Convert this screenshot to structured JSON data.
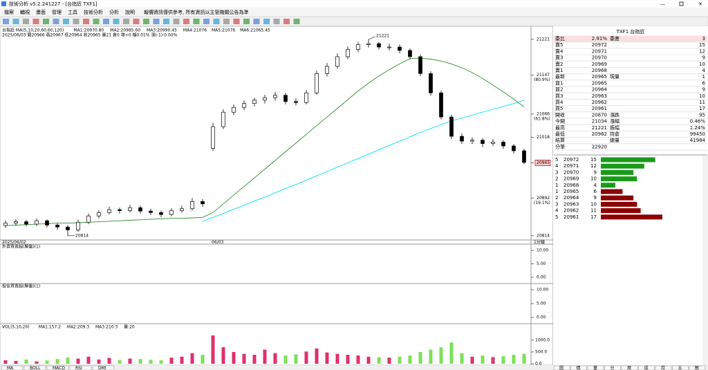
{
  "title_bar": "技術分析 v5.2.241227 - [台指近 TXF1]",
  "menu": [
    "檔案",
    "輔視",
    "畫面",
    "管理",
    "工具",
    "技術分析",
    "分析",
    "說明"
  ],
  "notice": "報價資訊僅供參考, 所有資訊以主管機關公告為準",
  "chart_data": [
    {
      "type": "candlestick",
      "legend": [
        {
          "text": "台指近 MA(5,10,20,60,60,120)",
          "color": "#000000"
        },
        {
          "text": "MA1:20970.80",
          "color": "#3050c0"
        },
        {
          "text": "MA2:20985.60",
          "color": "#e040c0"
        },
        {
          "text": "MA3:20990.45",
          "color": "#909090"
        },
        {
          "text": "MA4:21076",
          "color": "#a00000"
        },
        {
          "text": "MA5:21076",
          "color": "#208020"
        },
        {
          "text": "MA6:21065.45",
          "color": "#00c8d8"
        }
      ],
      "info": "2025/06/03 開20966 高20967 低20964 收20965 量21 倉0 增+0 幅0.01% 漲(-1)-0.00%",
      "up_color": "#ffffff",
      "down_color": "#000000",
      "candles": [
        [
          20835,
          20846,
          20830,
          20840
        ],
        [
          20840,
          20848,
          20835,
          20843
        ],
        [
          20843,
          20847,
          20833,
          20838
        ],
        [
          20838,
          20850,
          20834,
          20845
        ],
        [
          20845,
          20848,
          20831,
          20836
        ],
        [
          20836,
          20840,
          20826,
          20832
        ],
        [
          20832,
          20836,
          20814,
          20826
        ],
        [
          20826,
          20847,
          20822,
          20842
        ],
        [
          20842,
          20860,
          20838,
          20855
        ],
        [
          20855,
          20867,
          20850,
          20862
        ],
        [
          20862,
          20874,
          20858,
          20868
        ],
        [
          20868,
          20872,
          20860,
          20866
        ],
        [
          20866,
          20878,
          20862,
          20872
        ],
        [
          20872,
          20876,
          20860,
          20865
        ],
        [
          20865,
          20870,
          20857,
          20862
        ],
        [
          20862,
          20866,
          20852,
          20858
        ],
        [
          20858,
          20871,
          20854,
          20866
        ],
        [
          20866,
          20876,
          20862,
          20870
        ],
        [
          20870,
          20892,
          20866,
          20885
        ],
        [
          20885,
          20890,
          20874,
          20880
        ],
        [
          20995,
          21048,
          20990,
          21040
        ],
        [
          21040,
          21076,
          21035,
          21070
        ],
        [
          21070,
          21086,
          21064,
          21080
        ],
        [
          21080,
          21094,
          21074,
          21088
        ],
        [
          21088,
          21100,
          21082,
          21095
        ],
        [
          21095,
          21106,
          21088,
          21100
        ],
        [
          21100,
          21112,
          21094,
          21105
        ],
        [
          21105,
          21110,
          21086,
          21092
        ],
        [
          21092,
          21098,
          21084,
          21090
        ],
        [
          21090,
          21116,
          21086,
          21110
        ],
        [
          21110,
          21156,
          21106,
          21150
        ],
        [
          21150,
          21172,
          21144,
          21165
        ],
        [
          21165,
          21192,
          21160,
          21185
        ],
        [
          21185,
          21206,
          21180,
          21200
        ],
        [
          21200,
          21216,
          21194,
          21210
        ],
        [
          21210,
          21221,
          21204,
          21212
        ],
        [
          21212,
          21216,
          21200,
          21205
        ],
        [
          21205,
          21212,
          21198,
          21205
        ],
        [
          21205,
          21210,
          21192,
          21198
        ],
        [
          21198,
          21202,
          21180,
          21185
        ],
        [
          21185,
          21190,
          21145,
          21150
        ],
        [
          21150,
          21155,
          21104,
          21110
        ],
        [
          21110,
          21115,
          21055,
          21060
        ],
        [
          21060,
          21065,
          21014,
          21020
        ],
        [
          21020,
          21026,
          21004,
          21010
        ],
        [
          21010,
          21018,
          21004,
          21012
        ],
        [
          21012,
          21016,
          20998,
          21005
        ],
        [
          21005,
          21014,
          21000,
          21008
        ],
        [
          21008,
          21012,
          20994,
          21000
        ],
        [
          21000,
          21004,
          20984,
          20990
        ],
        [
          20990,
          20994,
          20962,
          20966
        ]
      ],
      "lines": [
        {
          "color": "#2e8b2e",
          "values": [
            20835,
            20836,
            20837,
            20838,
            20839,
            20840,
            20840,
            20841,
            20842,
            20843,
            20844,
            20845,
            20846,
            20847,
            20848,
            20849,
            20850,
            20850,
            20851,
            20852,
            20862,
            20880,
            20898,
            20916,
            20934,
            20952,
            20970,
            20988,
            21006,
            21024,
            21042,
            21060,
            21078,
            21096,
            21114,
            21130,
            21145,
            21158,
            21170,
            21181,
            21182,
            21180,
            21176,
            21170,
            21162,
            21152,
            21140,
            21126,
            21112,
            21097,
            21081
          ]
        },
        {
          "color": "#00e5ee",
          "values": [
            null,
            null,
            null,
            null,
            null,
            null,
            null,
            null,
            null,
            null,
            null,
            null,
            null,
            null,
            null,
            null,
            null,
            null,
            null,
            20844,
            20852,
            20860,
            20869,
            20877,
            20886,
            20894,
            20903,
            20912,
            20920,
            20929,
            20938,
            20947,
            20956,
            20965,
            20974,
            20983,
            20992,
            21001,
            21010,
            21019,
            21028,
            21036,
            21044,
            21052,
            21058,
            21064,
            21070,
            21076,
            21082,
            21088,
            21095
          ]
        }
      ],
      "ylim": [
        20808,
        21238
      ],
      "yticks": [
        21221,
        21147,
        21066,
        21018,
        20965,
        20892,
        20814
      ],
      "fib_labels": [
        {
          "value": 21147,
          "label": "(80.9%)"
        },
        {
          "value": 21066,
          "label": "(61.8%)"
        },
        {
          "value": 20892,
          "label": "(19.1%)"
        }
      ],
      "high_mark": {
        "index": 35,
        "value": 21221
      },
      "low_mark": {
        "index": 6,
        "value": 20814
      },
      "x_labels": [
        "2025/06/02",
        "06/03"
      ],
      "period": "1分鐘"
    },
    {
      "type": "panel",
      "title": "外資買賣超(解盤)(1)",
      "ylim": [
        0,
        10
      ],
      "yticks": [
        {
          "value": 10,
          "label": "10.00"
        },
        {
          "value": 5,
          "label": "5.00"
        },
        {
          "value": 0,
          "label": "0.00"
        }
      ]
    },
    {
      "type": "panel",
      "title": "投信買賣超(解盤)(1)",
      "ylim": [
        0,
        10
      ],
      "yticks": [
        {
          "value": 10,
          "label": "10.00"
        },
        {
          "value": 5,
          "label": "5.00"
        },
        {
          "value": 0,
          "label": "0.00"
        }
      ]
    },
    {
      "type": "bar",
      "legend": [
        {
          "text": "VOL(5,10,20)",
          "color": "#000000"
        },
        {
          "text": "MA1:157.2",
          "color": "#909090"
        },
        {
          "text": "MA2:209.3",
          "color": "#00c8d8"
        },
        {
          "text": "MA3:210.3",
          "color": "#e06080"
        },
        {
          "text": "量:20",
          "color": "#3050c0"
        }
      ],
      "values": [
        150,
        120,
        180,
        100,
        140,
        200,
        260,
        220,
        300,
        180,
        250,
        160,
        220,
        200,
        170,
        150,
        260,
        300,
        450,
        380,
        1200,
        700,
        500,
        420,
        380,
        600,
        450,
        350,
        400,
        520,
        650,
        480,
        420,
        380,
        350,
        300,
        280,
        260,
        300,
        350,
        500,
        600,
        700,
        900,
        450,
        300,
        350,
        280,
        320,
        380,
        420
      ],
      "up_color": "#e0306a",
      "down_color": "#7ee05a",
      "ylim": [
        0,
        1700
      ],
      "yticks": [
        {
          "value": 1000,
          "label": "1000.0"
        },
        {
          "value": 500,
          "label": "500.0"
        },
        {
          "value": 0,
          "label": "0.0"
        }
      ]
    }
  ],
  "quote": {
    "header": "TXF1 台指近",
    "rows": [
      [
        "委比",
        "2.91%",
        "委差",
        "3"
      ],
      [
        "賣5",
        "20972",
        "",
        "15"
      ],
      [
        "賣4",
        "20971",
        "",
        "12"
      ],
      [
        "賣3",
        "20970",
        "",
        "9"
      ],
      [
        "賣2",
        "20969",
        "",
        "10"
      ],
      [
        "賣1",
        "20968",
        "",
        "4"
      ],
      [
        "最新",
        "20965",
        "現量",
        "1"
      ],
      [
        "買1",
        "20965",
        "",
        "6"
      ],
      [
        "買2",
        "20964",
        "",
        "9"
      ],
      [
        "買3",
        "20963",
        "",
        "10"
      ],
      [
        "買4",
        "20962",
        "",
        "11"
      ],
      [
        "買5",
        "20961",
        "",
        "17"
      ],
      [
        "開收",
        "20870",
        "漲跌",
        "95"
      ],
      [
        "今開",
        "21034",
        "漲幅",
        "0.46%"
      ],
      [
        "最高",
        "21221",
        "振幅",
        "1.24%"
      ],
      [
        "最低",
        "20962",
        "持倉",
        "99450"
      ],
      [
        "結算",
        "",
        "總量",
        "41984"
      ],
      [
        "分筆",
        "22920",
        "",
        ""
      ]
    ]
  },
  "order_book": {
    "sell_color": "#1a9a1a",
    "buy_color": "#8b0000",
    "rows": [
      {
        "level": 5,
        "price": 20972,
        "qty": 15,
        "side": "sell"
      },
      {
        "level": 4,
        "price": 20971,
        "qty": 12,
        "side": "sell"
      },
      {
        "level": 3,
        "price": 20970,
        "qty": 9,
        "side": "sell"
      },
      {
        "level": 2,
        "price": 20969,
        "qty": 10,
        "side": "sell"
      },
      {
        "level": 1,
        "price": 20968,
        "qty": 4,
        "side": "sell"
      },
      {
        "level": 1,
        "price": 20965,
        "qty": 6,
        "side": "buy"
      },
      {
        "level": 2,
        "price": 20964,
        "qty": 9,
        "side": "buy"
      },
      {
        "level": 3,
        "price": 20963,
        "qty": 10,
        "side": "buy"
      },
      {
        "level": 4,
        "price": 20962,
        "qty": 11,
        "side": "buy"
      },
      {
        "level": 5,
        "price": 20961,
        "qty": 17,
        "side": "buy"
      }
    ]
  },
  "tabs_left": [
    "MA",
    "BOLL",
    "MACD",
    "RSI",
    "DMI"
  ],
  "tabs_right": [
    "圖",
    "價",
    "量",
    "分",
    "周",
    "成",
    "持",
    "五",
    "解"
  ]
}
